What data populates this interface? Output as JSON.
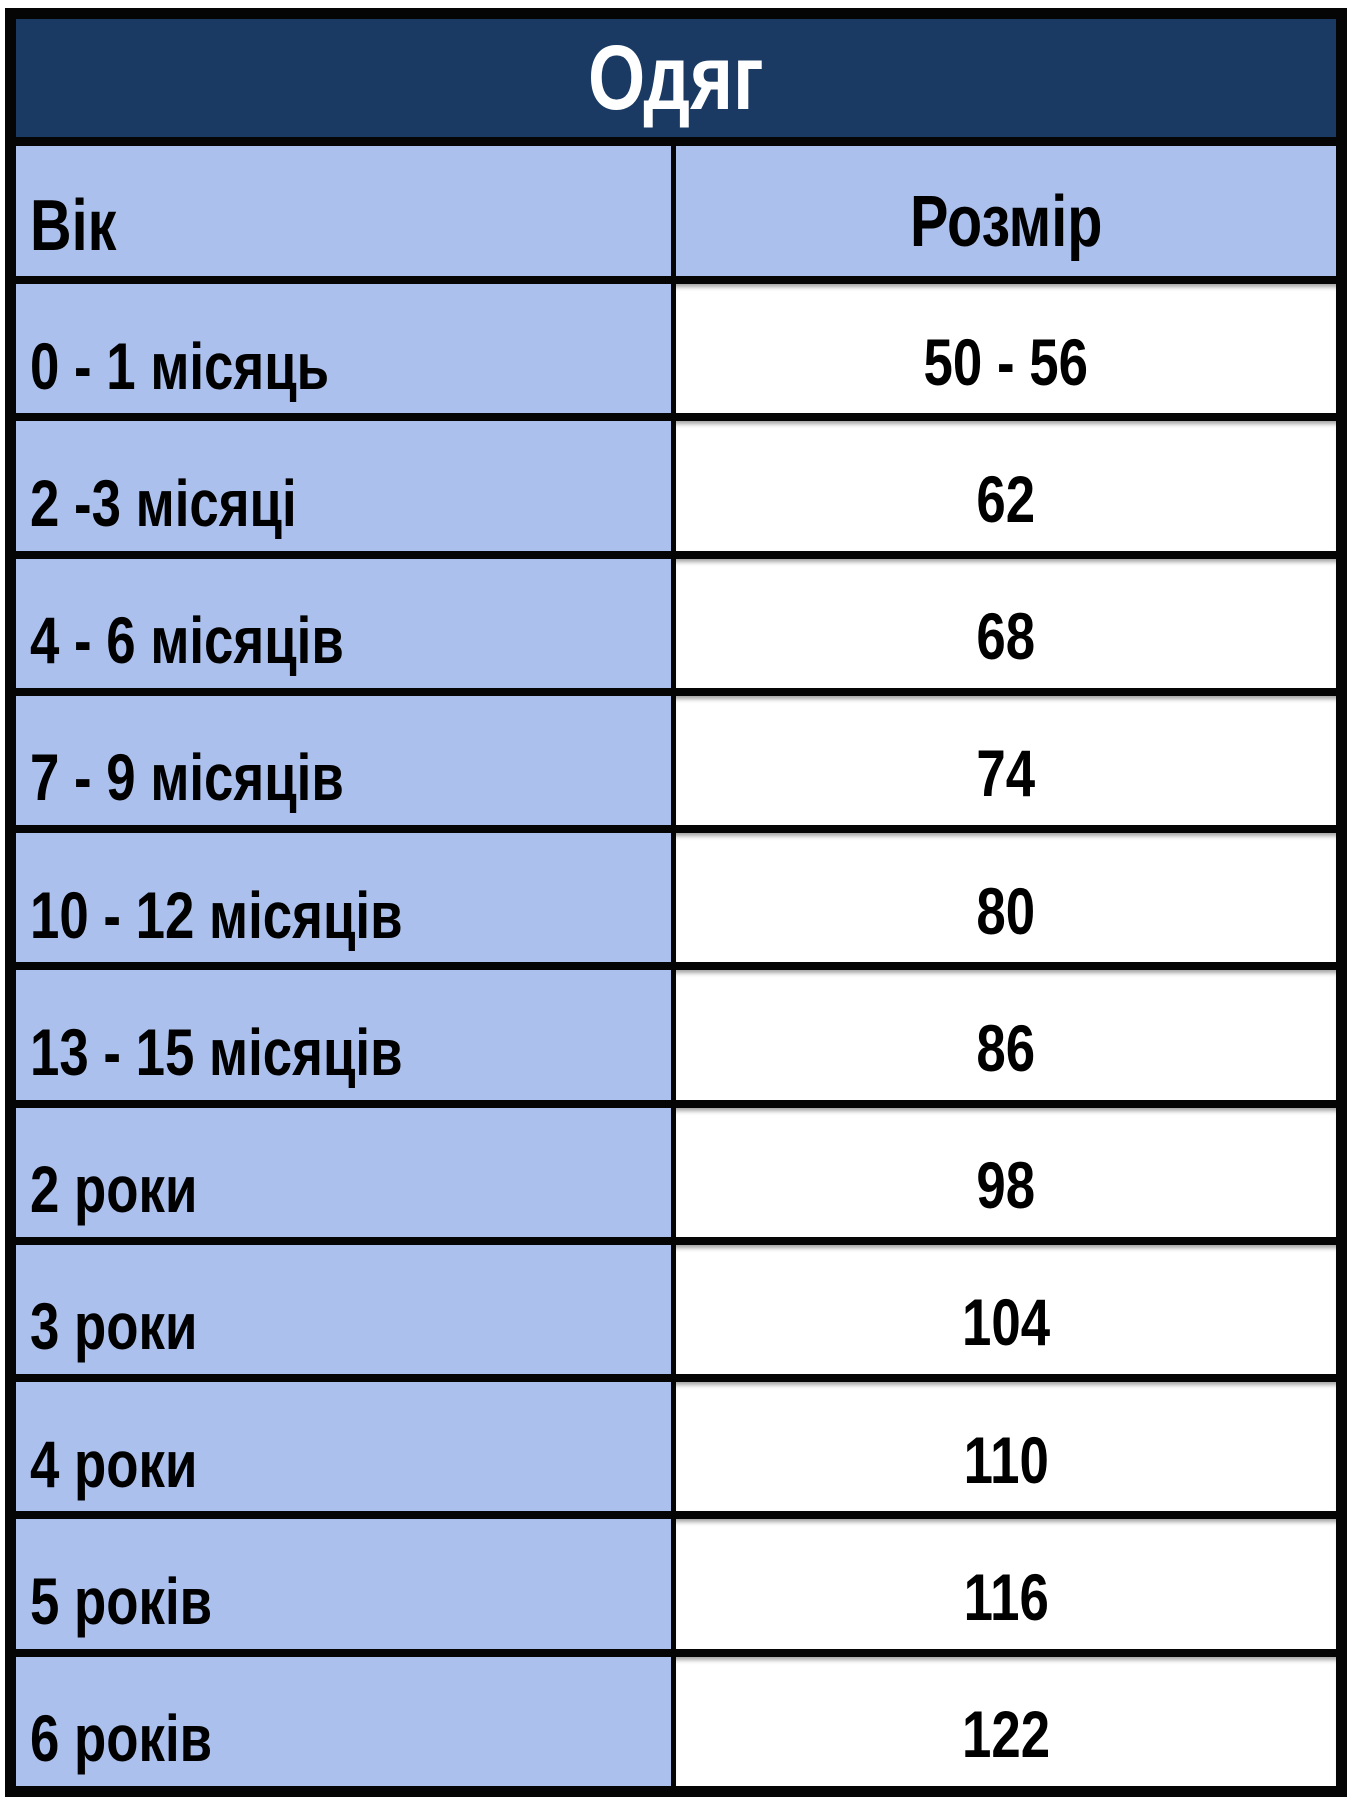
{
  "title": "Одяг",
  "columns": {
    "age": "Вік",
    "size": "Розмір"
  },
  "rows": [
    {
      "age": "0 - 1 місяць",
      "size": "50 - 56"
    },
    {
      "age": "2 -3 місяці",
      "size": "62"
    },
    {
      "age": "4 - 6 місяців",
      "size": "68"
    },
    {
      "age": "7 - 9 місяців",
      "size": "74"
    },
    {
      "age": "10 - 12 місяців",
      "size": "80"
    },
    {
      "age": "13 - 15 місяців",
      "size": "86"
    },
    {
      "age": "2 роки",
      "size": "98"
    },
    {
      "age": "3 роки",
      "size": "104"
    },
    {
      "age": "4 роки",
      "size": "110"
    },
    {
      "age": "5 років",
      "size": "116"
    },
    {
      "age": "6 років",
      "size": "122"
    }
  ],
  "colors": {
    "title_bg": "#1a3a63",
    "title_text": "#ffffff",
    "cell_blue_bg": "#abc0ec",
    "cell_white_bg": "#ffffff",
    "border": "#050505",
    "text": "#000000"
  }
}
